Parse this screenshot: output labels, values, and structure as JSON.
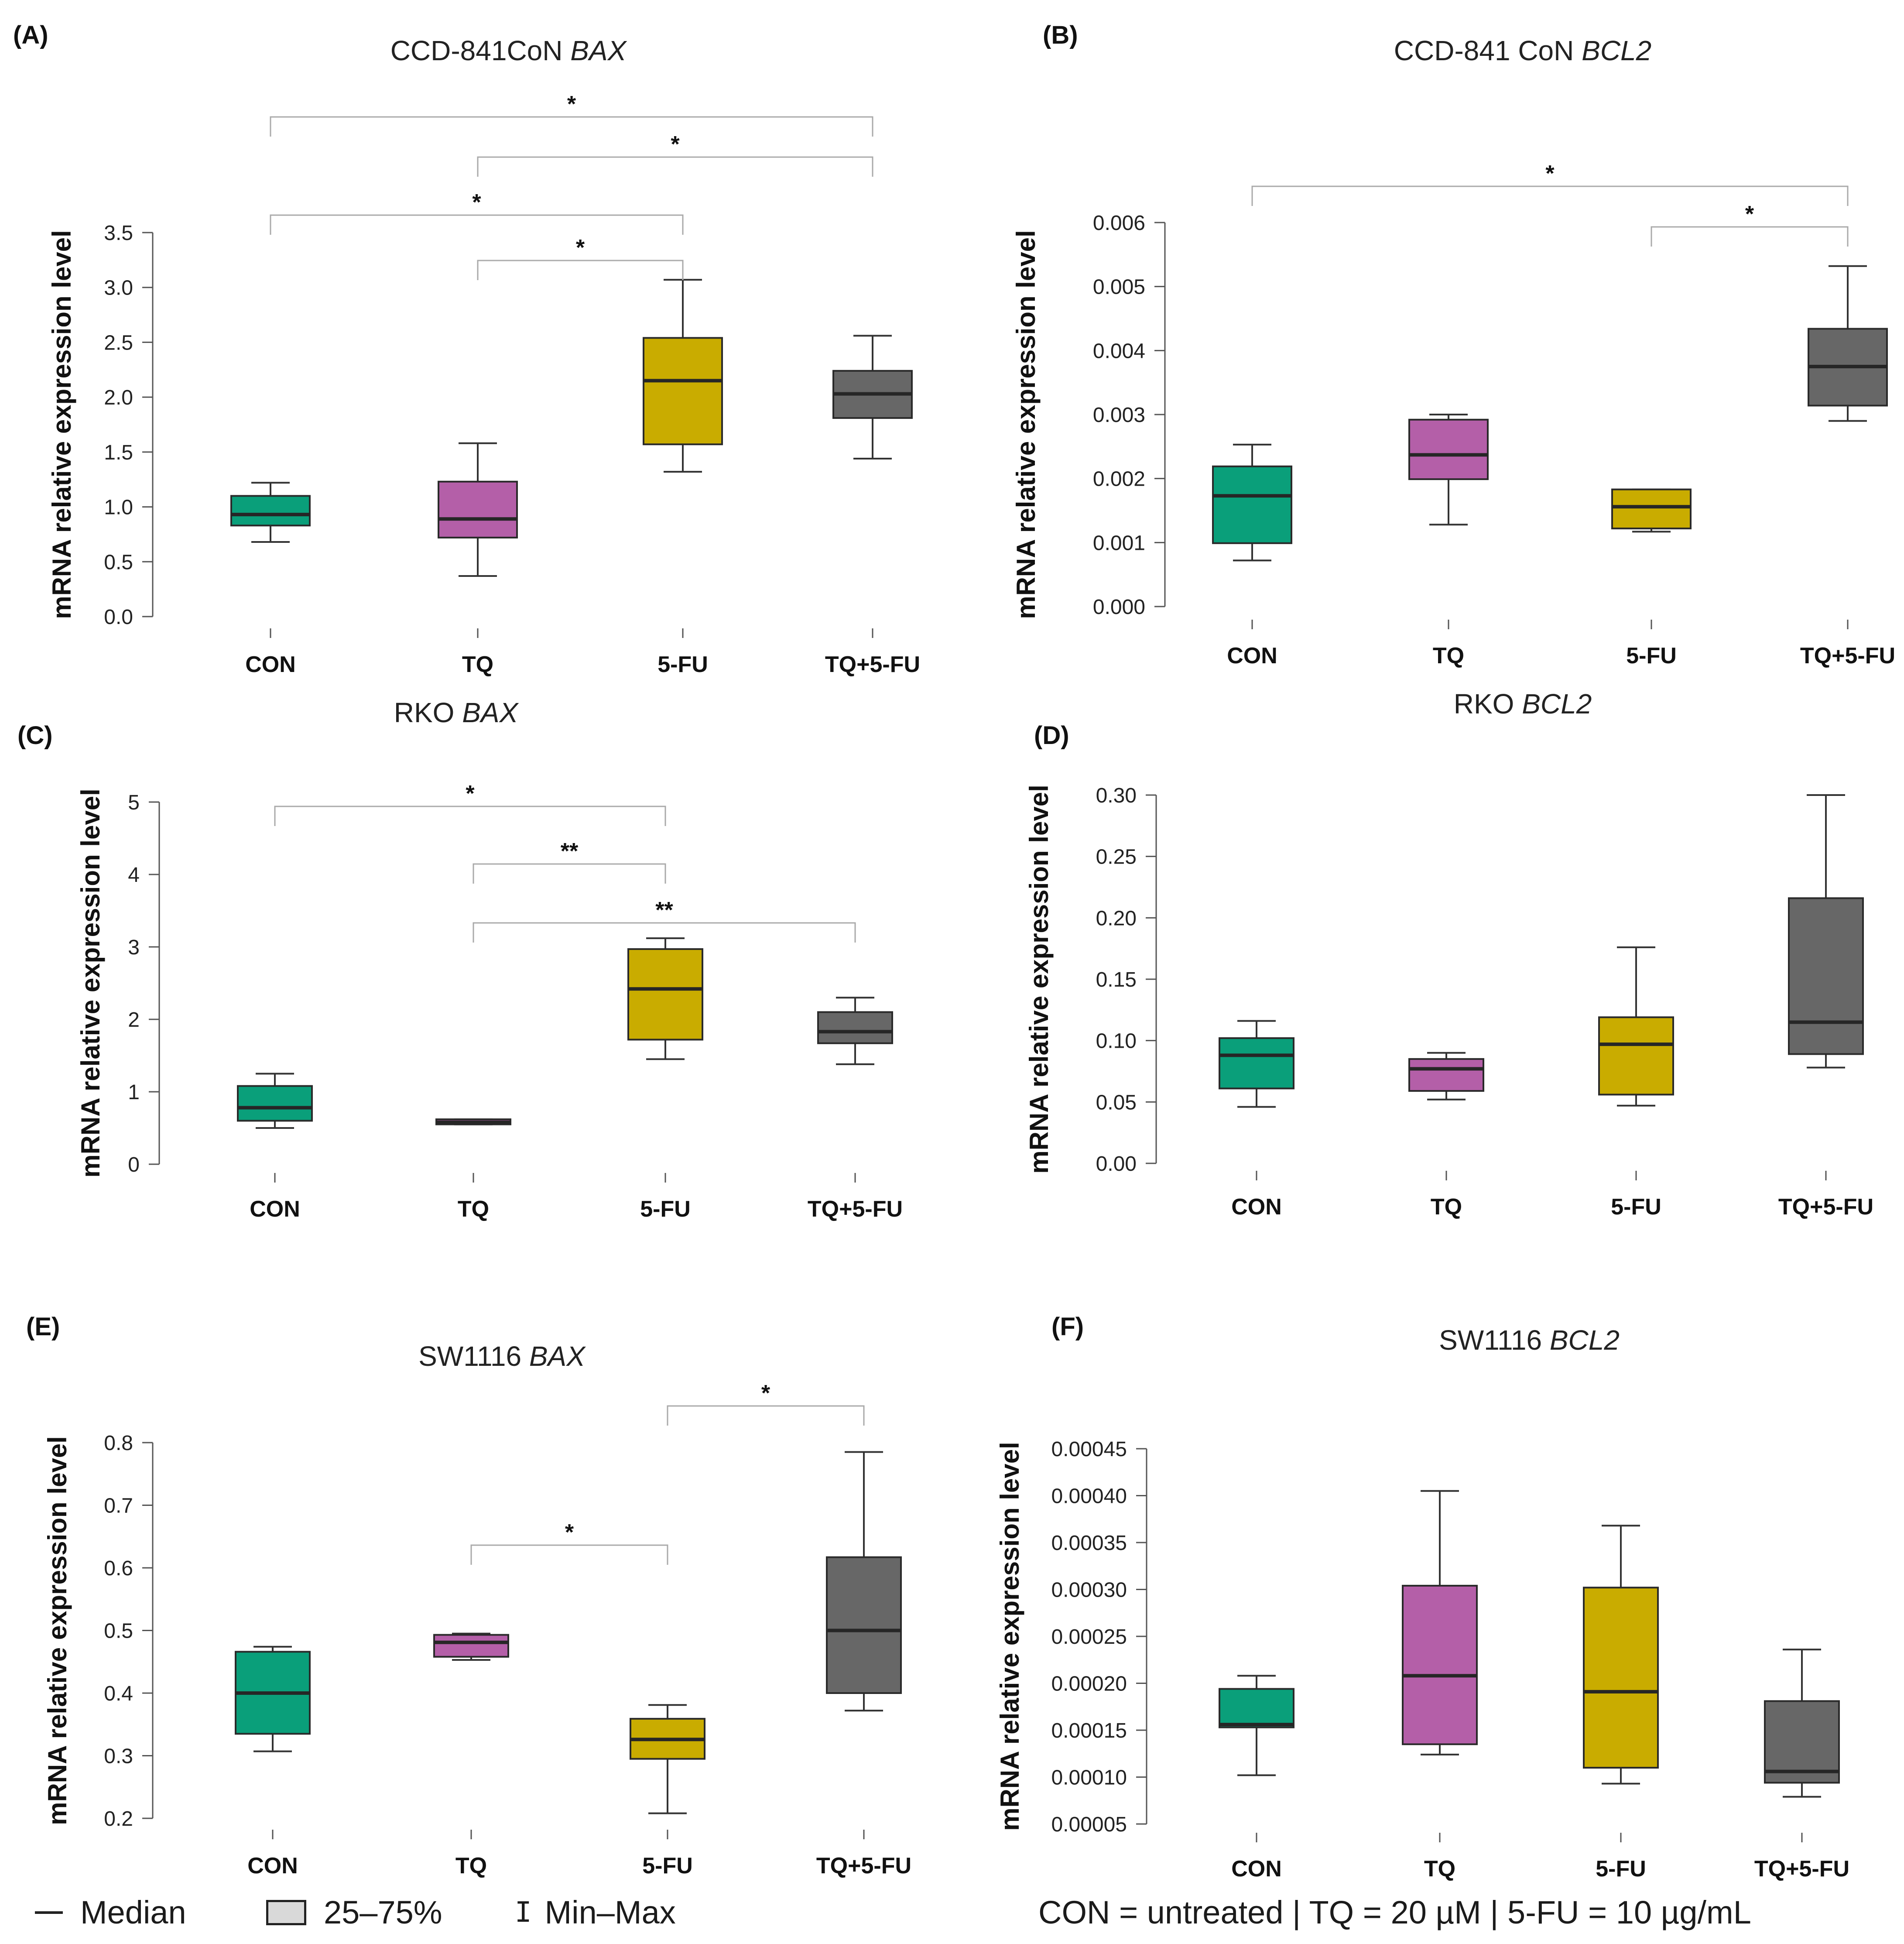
{
  "colors": {
    "CON": "#0a9f7a",
    "TQ": "#b45fa8",
    "5-FU": "#c9ac00",
    "TQ+5-FU": "#676767",
    "whisker": "#333333",
    "axis": "#555555",
    "bracket": "#aaaaaa"
  },
  "legend": {
    "median": "Median",
    "box": "25–75%",
    "whisker": "Min–Max",
    "note": "CON = untreated | TQ = 20 µM | 5-FU = 10 µg/mL"
  },
  "chart_data": [
    {
      "panel": "(A)",
      "type": "box",
      "title": "CCD-841CoN",
      "title_gene": "BAX",
      "ylabel": "mRNA relative expression level",
      "categories": [
        "CON",
        "TQ",
        "5-FU",
        "TQ+5-FU"
      ],
      "ylim": [
        0,
        3.5
      ],
      "yticks": [
        "0.0",
        "0.5",
        "1.0",
        "1.5",
        "2.0",
        "2.5",
        "3.0",
        "3.5"
      ],
      "boxes": [
        {
          "min": 0.68,
          "q1": 0.83,
          "median": 0.93,
          "q3": 1.1,
          "max": 1.22
        },
        {
          "min": 0.37,
          "q1": 0.72,
          "median": 0.89,
          "q3": 1.23,
          "max": 1.58
        },
        {
          "min": 1.32,
          "q1": 1.57,
          "median": 2.15,
          "q3": 2.54,
          "max": 3.07
        },
        {
          "min": 1.44,
          "q1": 1.81,
          "median": 2.03,
          "q3": 2.24,
          "max": 2.56
        }
      ],
      "brackets": [
        {
          "from": 0,
          "to": 3,
          "label": "*",
          "level": 0
        },
        {
          "from": 1,
          "to": 3,
          "label": "*",
          "level": 1
        },
        {
          "from": 0,
          "to": 2,
          "label": "*",
          "level": 2
        },
        {
          "from": 1,
          "to": 2,
          "label": "*",
          "level": 3
        }
      ]
    },
    {
      "panel": "(B)",
      "type": "box",
      "title": "CCD-841 CoN",
      "title_gene": "BCL2",
      "ylabel": "mRNA relative expression level",
      "categories": [
        "CON",
        "TQ",
        "5-FU",
        "TQ+5-FU"
      ],
      "ylim": [
        0,
        0.006
      ],
      "yticks": [
        "0.000",
        "0.001",
        "0.002",
        "0.003",
        "0.004",
        "0.005",
        "0.006"
      ],
      "boxes": [
        {
          "min": 0.00072,
          "q1": 0.00099,
          "median": 0.00173,
          "q3": 0.00219,
          "max": 0.00253
        },
        {
          "min": 0.00128,
          "q1": 0.00199,
          "median": 0.00237,
          "q3": 0.00292,
          "max": 0.003
        },
        {
          "min": 0.00117,
          "q1": 0.00122,
          "median": 0.00156,
          "q3": 0.00183,
          "max": 0.00183
        },
        {
          "min": 0.0029,
          "q1": 0.00314,
          "median": 0.00375,
          "q3": 0.00434,
          "max": 0.00532
        }
      ],
      "brackets": [
        {
          "from": 0,
          "to": 3,
          "label": "*",
          "level": 0
        },
        {
          "from": 2,
          "to": 3,
          "label": "*",
          "level": 1
        }
      ]
    },
    {
      "panel": "(C)",
      "type": "box",
      "title": "RKO",
      "title_gene": "BAX",
      "ylabel": "mRNA relative expression level",
      "categories": [
        "CON",
        "TQ",
        "5-FU",
        "TQ+5-FU"
      ],
      "ylim": [
        0,
        5
      ],
      "yticks": [
        "0",
        "1",
        "2",
        "3",
        "4",
        "5"
      ],
      "boxes": [
        {
          "min": 0.5,
          "q1": 0.6,
          "median": 0.78,
          "q3": 1.08,
          "max": 1.25
        },
        {
          "min": 0.55,
          "q1": 0.55,
          "median": 0.58,
          "q3": 0.62,
          "max": 0.62
        },
        {
          "min": 1.45,
          "q1": 1.72,
          "median": 2.42,
          "q3": 2.97,
          "max": 3.12
        },
        {
          "min": 1.38,
          "q1": 1.67,
          "median": 1.83,
          "q3": 2.1,
          "max": 2.3
        }
      ],
      "brackets": [
        {
          "from": 0,
          "to": 2,
          "label": "*",
          "level": 0
        },
        {
          "from": 1,
          "to": 2,
          "label": "**",
          "level": 1
        },
        {
          "from": 1,
          "to": 3,
          "label": "**",
          "level": 2
        }
      ]
    },
    {
      "panel": "(D)",
      "type": "box",
      "title": "RKO",
      "title_gene": "BCL2",
      "ylabel": "mRNA relative expression level",
      "categories": [
        "CON",
        "TQ",
        "5-FU",
        "TQ+5-FU"
      ],
      "ylim": [
        0,
        0.3
      ],
      "yticks": [
        "0.00",
        "0.05",
        "0.10",
        "0.15",
        "0.20",
        "0.25",
        "0.30"
      ],
      "boxes": [
        {
          "min": 0.046,
          "q1": 0.061,
          "median": 0.088,
          "q3": 0.102,
          "max": 0.116
        },
        {
          "min": 0.052,
          "q1": 0.059,
          "median": 0.077,
          "q3": 0.085,
          "max": 0.09
        },
        {
          "min": 0.047,
          "q1": 0.056,
          "median": 0.097,
          "q3": 0.119,
          "max": 0.176
        },
        {
          "min": 0.078,
          "q1": 0.089,
          "median": 0.115,
          "q3": 0.216,
          "max": 0.3
        }
      ],
      "brackets": []
    },
    {
      "panel": "(E)",
      "type": "box",
      "title": "SW1116",
      "title_gene": "BAX",
      "ylabel": "mRNA relative expression level",
      "categories": [
        "CON",
        "TQ",
        "5-FU",
        "TQ+5-FU"
      ],
      "ylim": [
        0.2,
        0.8
      ],
      "yticks": [
        "0.2",
        "0.3",
        "0.4",
        "0.5",
        "0.6",
        "0.7",
        "0.8"
      ],
      "boxes": [
        {
          "min": 0.307,
          "q1": 0.335,
          "median": 0.4,
          "q3": 0.466,
          "max": 0.474
        },
        {
          "min": 0.453,
          "q1": 0.458,
          "median": 0.481,
          "q3": 0.493,
          "max": 0.495
        },
        {
          "min": 0.208,
          "q1": 0.295,
          "median": 0.326,
          "q3": 0.359,
          "max": 0.381
        },
        {
          "min": 0.372,
          "q1": 0.4,
          "median": 0.5,
          "q3": 0.617,
          "max": 0.785
        }
      ],
      "brackets": [
        {
          "from": 2,
          "to": 3,
          "label": "*",
          "level": 0
        },
        {
          "from": 1,
          "to": 2,
          "label": "*",
          "level": 1
        }
      ]
    },
    {
      "panel": "(F)",
      "type": "box",
      "title": "SW1116",
      "title_gene": "BCL2",
      "ylabel": "mRNA relative expression level",
      "categories": [
        "CON",
        "TQ",
        "5-FU",
        "TQ+5-FU"
      ],
      "ylim": [
        5e-05,
        0.00045
      ],
      "yticks": [
        "0.00005",
        "0.00010",
        "0.00015",
        "0.00020",
        "0.00025",
        "0.00030",
        "0.00035",
        "0.00040",
        "0.00045"
      ],
      "boxes": [
        {
          "min": 0.000102,
          "q1": 0.000153,
          "median": 0.000156,
          "q3": 0.000194,
          "max": 0.000208
        },
        {
          "min": 0.000124,
          "q1": 0.000135,
          "median": 0.000208,
          "q3": 0.000304,
          "max": 0.000405
        },
        {
          "min": 9.3e-05,
          "q1": 0.00011,
          "median": 0.000191,
          "q3": 0.000302,
          "max": 0.000368
        },
        {
          "min": 7.9e-05,
          "q1": 9.4e-05,
          "median": 0.000106,
          "q3": 0.000181,
          "max": 0.000236
        }
      ],
      "brackets": []
    }
  ]
}
